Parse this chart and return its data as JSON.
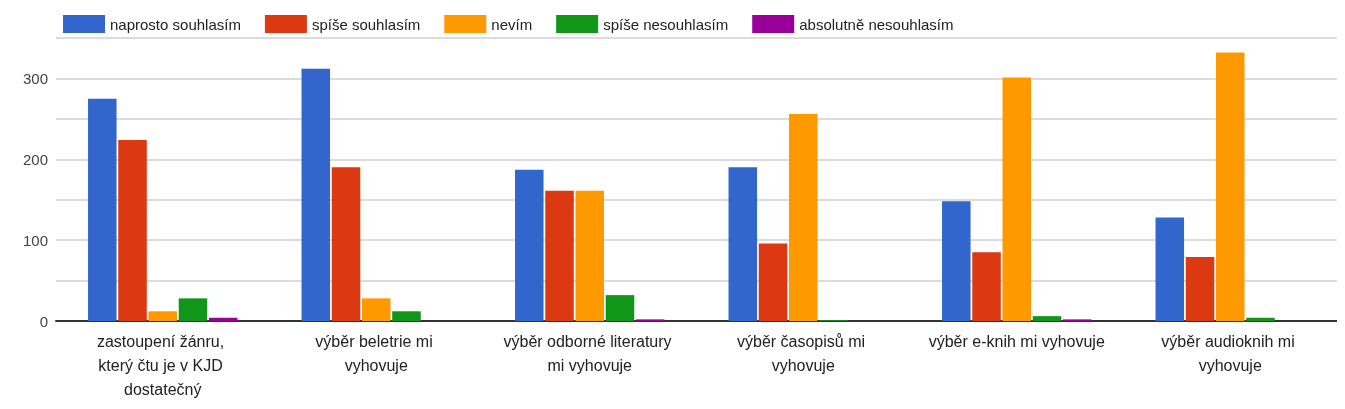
{
  "chart_data": {
    "type": "bar",
    "categories": [
      "zastoupení žánru, který čtu je v KJD dostatečný",
      "výběr beletrie mi vyhovuje",
      "výběr odborné literatury mi vyhovuje",
      "výběr časopisů mi vyhovuje",
      "výběr e-knih mi vyhovuje",
      "výběr audioknih mi vyhovuje"
    ],
    "series": [
      {
        "name": "naprosto souhlasím",
        "color": "#3366cc",
        "values": [
          275,
          312,
          187,
          190,
          148,
          128
        ]
      },
      {
        "name": "spíše souhlasím",
        "color": "#dc3912",
        "values": [
          224,
          190,
          161,
          96,
          85,
          79
        ]
      },
      {
        "name": "nevím",
        "color": "#ff9900",
        "values": [
          12,
          28,
          161,
          256,
          301,
          332
        ]
      },
      {
        "name": "spíše nesouhlasím",
        "color": "#109618",
        "values": [
          28,
          12,
          32,
          1,
          6,
          4
        ]
      },
      {
        "name": "absolutně nesouhlasím",
        "color": "#990099",
        "values": [
          4,
          0,
          2,
          0,
          2,
          0
        ]
      }
    ],
    "ylim": [
      0,
      350
    ],
    "yticks": [
      0,
      {
        "value": 50,
        "label": null
      },
      100,
      {
        "value": 150,
        "label": null
      },
      200,
      {
        "value": 250,
        "label": null
      },
      300,
      {
        "value": 350,
        "label": null
      }
    ],
    "grid": "y",
    "legend": "top left"
  }
}
